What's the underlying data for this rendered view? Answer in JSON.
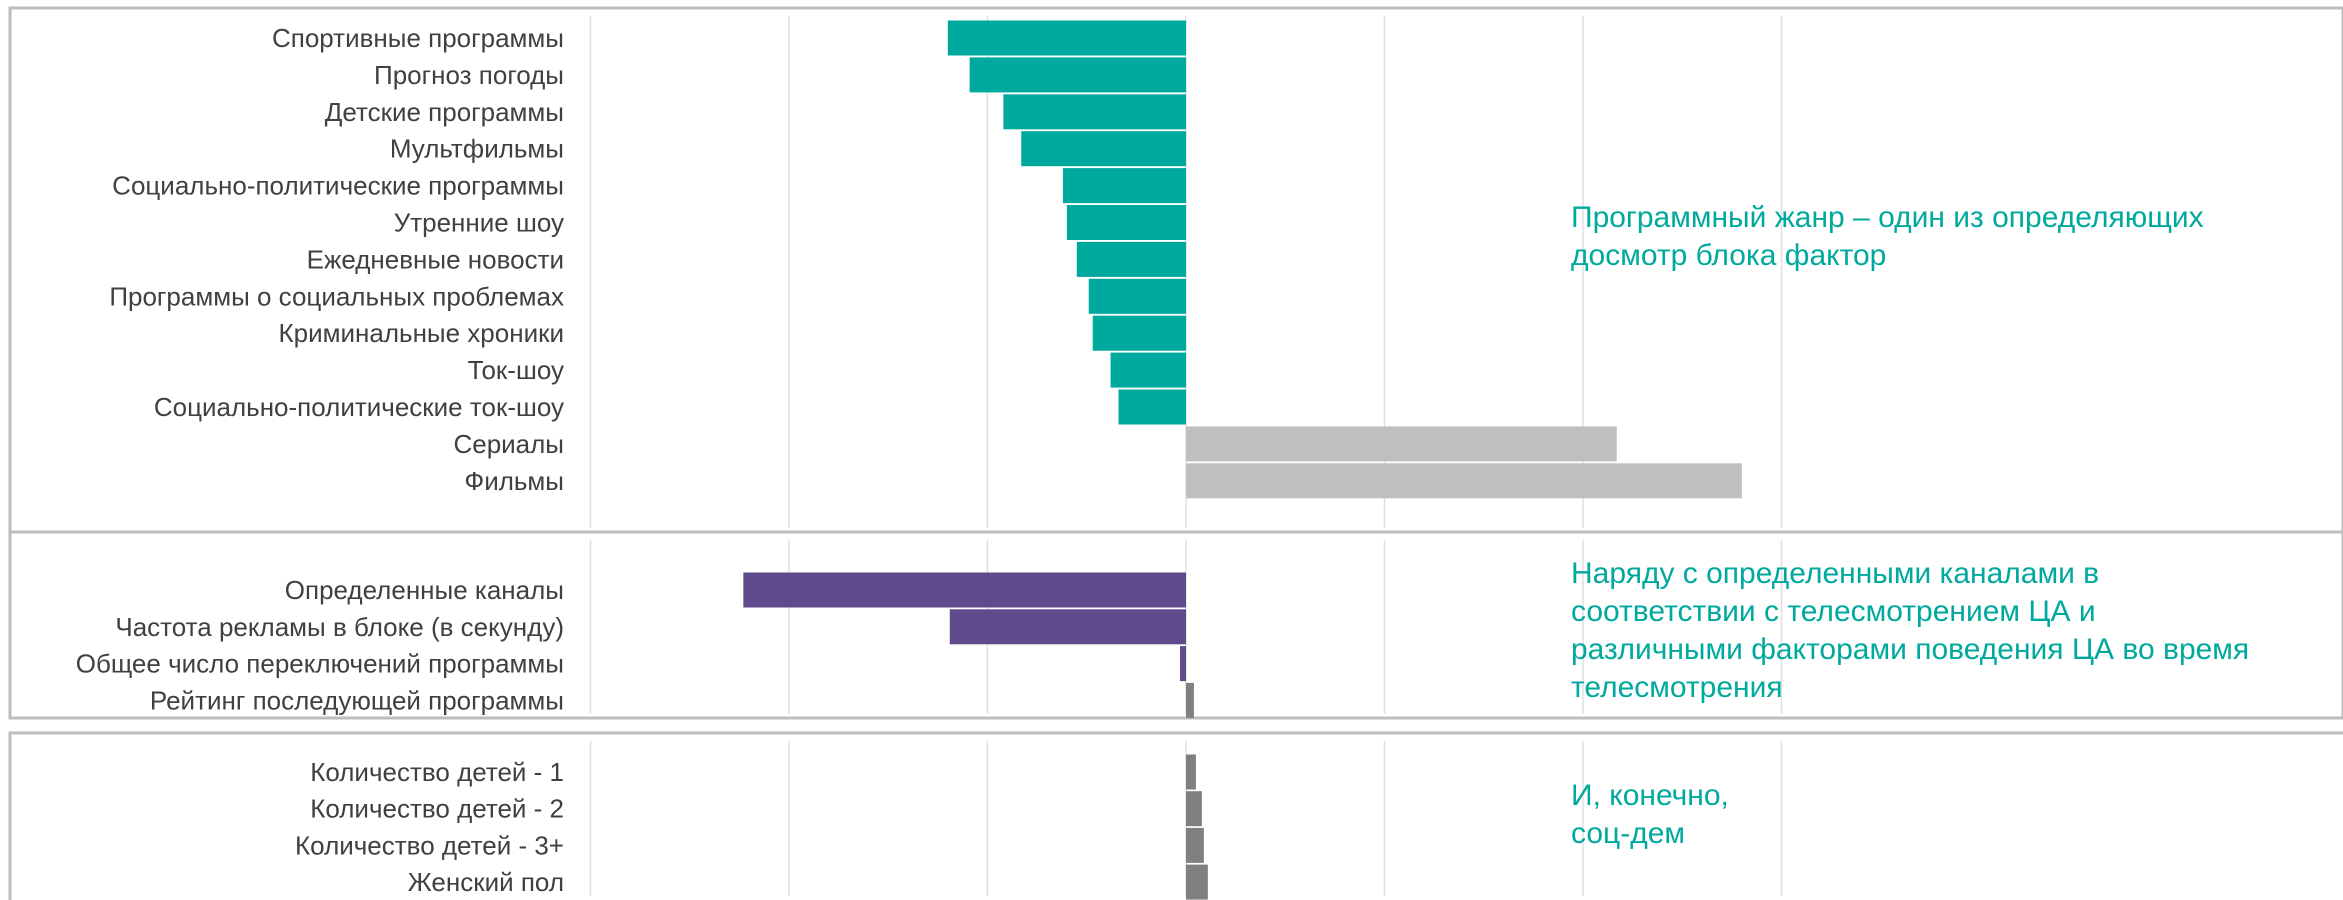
{
  "colors": {
    "negative_genre": "#00A99D",
    "positive_genre": "#BFBFBF",
    "negative_channel": "#5F4B8B",
    "positive_factor": "#808080",
    "note_text": "#00A99D",
    "gridline": "#E0E0E0",
    "section_border": "#BDBDBD"
  },
  "chart_data": [
    {
      "type": "bar",
      "orientation": "horizontal",
      "grid": true,
      "xlim": [
        -3,
        3
      ],
      "categories": [
        "Спортивные программы",
        "Прогноз погоды",
        "Детские программы",
        "Мультфильмы",
        "Социально-политические программы",
        "Утренние шоу",
        "Ежедневные новости",
        "Программы о социальных проблемах",
        "Криминальные хроники",
        "Ток-шоу",
        "Социально-политические ток-шоу",
        "Сериалы",
        "Фильмы"
      ],
      "values": [
        -1.2,
        -1.09,
        -0.92,
        -0.83,
        -0.62,
        -0.6,
        -0.55,
        -0.49,
        -0.47,
        -0.38,
        -0.34,
        2.17,
        2.8
      ],
      "annotation": [
        "Программный жанр – один из определяющих",
        "досмотр блока фактор"
      ]
    },
    {
      "type": "bar",
      "orientation": "horizontal",
      "grid": true,
      "xlim": [
        -3,
        3
      ],
      "categories": [
        "Определенные каналы",
        "Частота рекламы в блоке (в секунду)",
        "Общее число переключений программы",
        "Рейтинг последующей программы"
      ],
      "values": [
        -2.23,
        -1.19,
        -0.03,
        0.04
      ],
      "annotation": [
        "Наряду с определенными каналами в",
        "соответствии с телесмотрением ЦА и",
        "различными факторами поведения ЦА во время",
        "телесмотрения"
      ]
    },
    {
      "type": "bar",
      "orientation": "horizontal",
      "grid": true,
      "xlim": [
        -3,
        3
      ],
      "categories": [
        "Количество детей - 1",
        "Количество детей - 2",
        "Количество детей - 3+",
        "Женский пол"
      ],
      "values": [
        0.05,
        0.08,
        0.09,
        0.11
      ],
      "annotation": [
        "И, конечно,",
        "соц-дем"
      ]
    }
  ]
}
